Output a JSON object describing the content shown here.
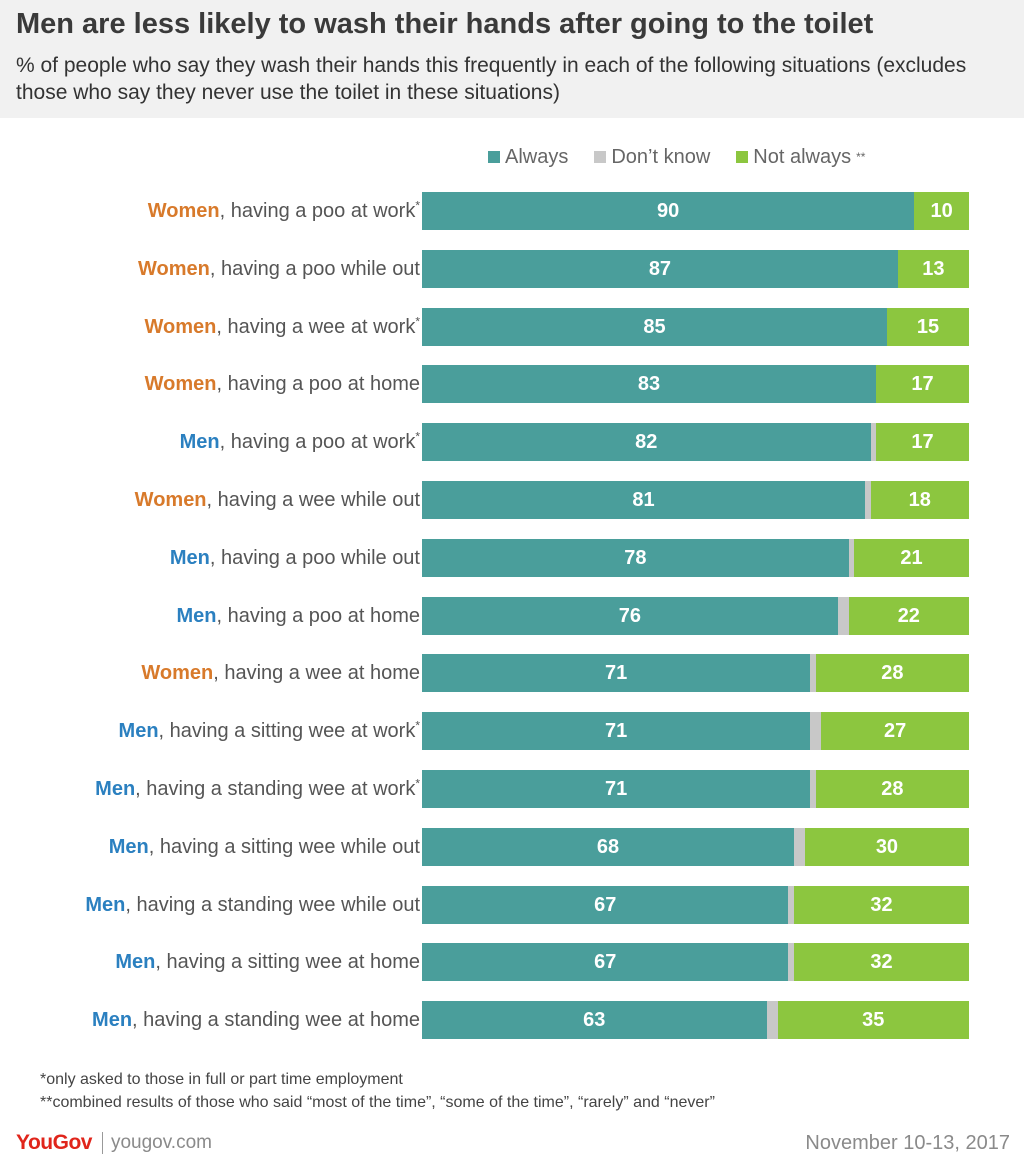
{
  "title": "Men are less likely to wash their hands after going to the toilet",
  "subtitle": "% of people who say they wash their hands this frequently in each of the following situations (excludes those who say they never use the toilet in these situations)",
  "footnotes": [
    "*only asked to those in full or part time employment",
    "**combined results of those who said “most of the time”, “some of the time”, “rarely” and “never”"
  ],
  "brand": {
    "logo": "YouGov",
    "url": "yougov.com"
  },
  "date": "November 10-13, 2017",
  "colors": {
    "always": "#4a9e9b",
    "dont_know": "#c8c8c8",
    "not_always": "#8cc63f",
    "women": "#d87a2b",
    "men": "#2b80c0"
  },
  "chart_data": {
    "type": "bar",
    "orientation": "horizontal",
    "stacked": true,
    "legend_position": "top",
    "legend": [
      {
        "key": "always",
        "label": "Always",
        "sup": ""
      },
      {
        "key": "dont_know",
        "label": "Don’t know",
        "sup": ""
      },
      {
        "key": "not_always",
        "label": "Not always",
        "sup": "**"
      }
    ],
    "rows": [
      {
        "group": "Women",
        "situation": ", having a poo at work",
        "sup": "*",
        "always": 90,
        "not_always": 10
      },
      {
        "group": "Women",
        "situation": ", having a poo while out",
        "sup": "",
        "always": 87,
        "not_always": 13
      },
      {
        "group": "Women",
        "situation": ", having a wee at work",
        "sup": "*",
        "always": 85,
        "not_always": 15
      },
      {
        "group": "Women",
        "situation": ", having a poo at home",
        "sup": "",
        "always": 83,
        "not_always": 17
      },
      {
        "group": "Men",
        "situation": ", having a poo at work",
        "sup": "*",
        "always": 82,
        "not_always": 17
      },
      {
        "group": "Women",
        "situation": ", having a wee while out",
        "sup": "",
        "always": 81,
        "not_always": 18
      },
      {
        "group": "Men",
        "situation": ", having a poo while out",
        "sup": "",
        "always": 78,
        "not_always": 21
      },
      {
        "group": "Men",
        "situation": ", having a poo at home",
        "sup": "",
        "always": 76,
        "not_always": 22
      },
      {
        "group": "Women",
        "situation": ", having a wee at home",
        "sup": "",
        "always": 71,
        "not_always": 28
      },
      {
        "group": "Men",
        "situation": ", having a sitting wee at work",
        "sup": "*",
        "always": 71,
        "not_always": 27
      },
      {
        "group": "Men",
        "situation": ", having a standing wee at work",
        "sup": "*",
        "always": 71,
        "not_always": 28
      },
      {
        "group": "Men",
        "situation": ", having a sitting wee while out",
        "sup": "",
        "always": 68,
        "not_always": 30
      },
      {
        "group": "Men",
        "situation": ", having a standing wee while out",
        "sup": "",
        "always": 67,
        "not_always": 32
      },
      {
        "group": "Men",
        "situation": ", having a sitting wee at home",
        "sup": "",
        "always": 67,
        "not_always": 32
      },
      {
        "group": "Men",
        "situation": ", having a standing wee at home",
        "sup": "",
        "always": 63,
        "not_always": 35
      }
    ]
  }
}
